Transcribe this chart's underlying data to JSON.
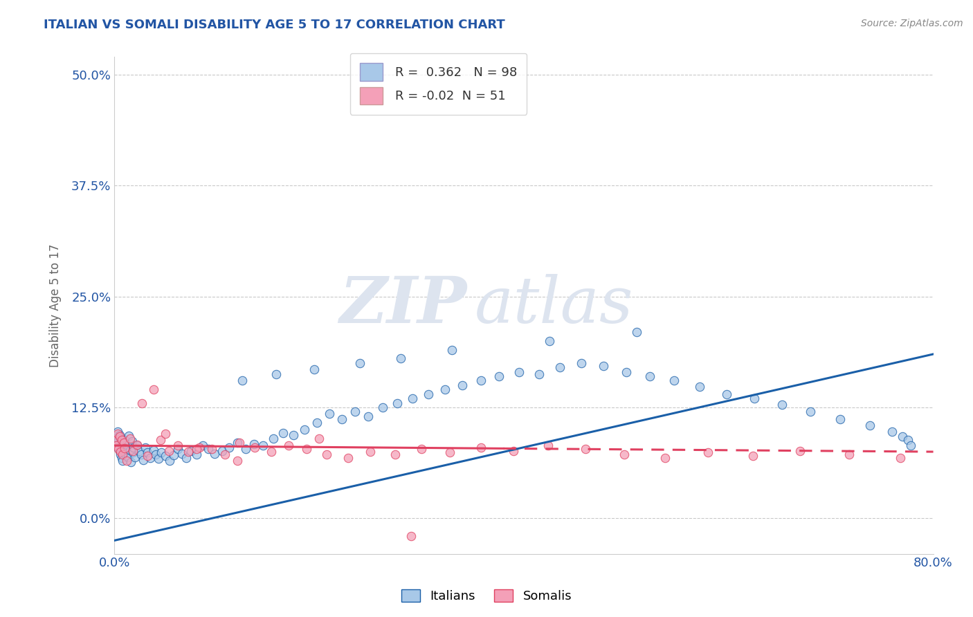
{
  "title": "ITALIAN VS SOMALI DISABILITY AGE 5 TO 17 CORRELATION CHART",
  "source_text": "Source: ZipAtlas.com",
  "ylabel": "Disability Age 5 to 17",
  "xlim": [
    0.0,
    0.8
  ],
  "ylim": [
    -0.04,
    0.52
  ],
  "yticks": [
    0.0,
    0.125,
    0.25,
    0.375,
    0.5
  ],
  "ytick_labels": [
    "0.0%",
    "12.5%",
    "25.0%",
    "37.5%",
    "50.0%"
  ],
  "xticks": [
    0.0,
    0.8
  ],
  "xtick_labels": [
    "0.0%",
    "80.0%"
  ],
  "italian_R": 0.362,
  "italian_N": 98,
  "somali_R": -0.02,
  "somali_N": 51,
  "italian_color": "#a8c8e8",
  "somali_color": "#f4a0b8",
  "italian_line_color": "#1a5fa8",
  "somali_line_color": "#e04060",
  "title_color": "#2255a4",
  "axis_label_color": "#666666",
  "tick_color": "#2255a4",
  "grid_color": "#bbbbbb",
  "watermark_zip": "ZIP",
  "watermark_atlas": "atlas",
  "watermark_color": "#dde4ef",
  "background_color": "#ffffff",
  "italian_line_x0": 0.0,
  "italian_line_y0": -0.025,
  "italian_line_x1": 0.8,
  "italian_line_y1": 0.185,
  "somali_line_x0": 0.0,
  "somali_line_y0": 0.082,
  "somali_line_x1": 0.8,
  "somali_line_y1": 0.075,
  "somali_line_solid_end": 0.38,
  "italian_scatter_x": [
    0.001,
    0.002,
    0.003,
    0.003,
    0.004,
    0.005,
    0.005,
    0.006,
    0.006,
    0.007,
    0.007,
    0.008,
    0.008,
    0.009,
    0.01,
    0.01,
    0.011,
    0.012,
    0.013,
    0.014,
    0.015,
    0.016,
    0.017,
    0.018,
    0.019,
    0.02,
    0.022,
    0.024,
    0.026,
    0.028,
    0.03,
    0.032,
    0.035,
    0.038,
    0.04,
    0.043,
    0.046,
    0.05,
    0.054,
    0.058,
    0.062,
    0.066,
    0.07,
    0.075,
    0.08,
    0.086,
    0.092,
    0.098,
    0.105,
    0.112,
    0.12,
    0.128,
    0.136,
    0.145,
    0.155,
    0.165,
    0.175,
    0.186,
    0.198,
    0.21,
    0.222,
    0.235,
    0.248,
    0.262,
    0.276,
    0.291,
    0.307,
    0.323,
    0.34,
    0.358,
    0.376,
    0.395,
    0.415,
    0.435,
    0.456,
    0.478,
    0.5,
    0.523,
    0.547,
    0.572,
    0.598,
    0.625,
    0.652,
    0.68,
    0.709,
    0.738,
    0.76,
    0.77,
    0.775,
    0.778,
    0.425,
    0.33,
    0.28,
    0.51,
    0.24,
    0.195,
    0.158,
    0.125
  ],
  "italian_scatter_y": [
    0.092,
    0.085,
    0.08,
    0.098,
    0.088,
    0.076,
    0.094,
    0.072,
    0.09,
    0.068,
    0.086,
    0.065,
    0.082,
    0.078,
    0.075,
    0.088,
    0.071,
    0.083,
    0.069,
    0.093,
    0.077,
    0.063,
    0.087,
    0.074,
    0.08,
    0.069,
    0.082,
    0.076,
    0.072,
    0.066,
    0.08,
    0.074,
    0.068,
    0.077,
    0.072,
    0.067,
    0.074,
    0.07,
    0.065,
    0.071,
    0.078,
    0.073,
    0.068,
    0.076,
    0.072,
    0.082,
    0.078,
    0.073,
    0.076,
    0.08,
    0.085,
    0.078,
    0.084,
    0.082,
    0.09,
    0.096,
    0.094,
    0.1,
    0.108,
    0.118,
    0.112,
    0.12,
    0.115,
    0.125,
    0.13,
    0.135,
    0.14,
    0.145,
    0.15,
    0.155,
    0.16,
    0.165,
    0.162,
    0.17,
    0.175,
    0.172,
    0.165,
    0.16,
    0.155,
    0.148,
    0.14,
    0.135,
    0.128,
    0.12,
    0.112,
    0.105,
    0.098,
    0.092,
    0.088,
    0.082,
    0.2,
    0.19,
    0.18,
    0.21,
    0.175,
    0.168,
    0.162,
    0.155
  ],
  "somali_scatter_x": [
    0.001,
    0.002,
    0.003,
    0.004,
    0.005,
    0.006,
    0.007,
    0.008,
    0.009,
    0.01,
    0.012,
    0.015,
    0.018,
    0.022,
    0.027,
    0.032,
    0.038,
    0.045,
    0.053,
    0.062,
    0.072,
    0.083,
    0.095,
    0.108,
    0.122,
    0.137,
    0.153,
    0.17,
    0.188,
    0.207,
    0.228,
    0.25,
    0.274,
    0.3,
    0.328,
    0.358,
    0.39,
    0.424,
    0.46,
    0.498,
    0.538,
    0.58,
    0.624,
    0.67,
    0.718,
    0.768,
    0.05,
    0.08,
    0.12,
    0.2,
    0.29
  ],
  "somali_scatter_y": [
    0.088,
    0.082,
    0.095,
    0.078,
    0.092,
    0.075,
    0.088,
    0.072,
    0.085,
    0.079,
    0.065,
    0.09,
    0.076,
    0.083,
    0.13,
    0.07,
    0.145,
    0.088,
    0.076,
    0.082,
    0.075,
    0.08,
    0.078,
    0.072,
    0.085,
    0.08,
    0.075,
    0.082,
    0.078,
    0.072,
    0.068,
    0.075,
    0.072,
    0.078,
    0.074,
    0.08,
    0.076,
    0.082,
    0.078,
    0.072,
    0.068,
    0.074,
    0.07,
    0.076,
    0.072,
    0.068,
    0.095,
    0.078,
    0.065,
    0.09,
    -0.02
  ]
}
